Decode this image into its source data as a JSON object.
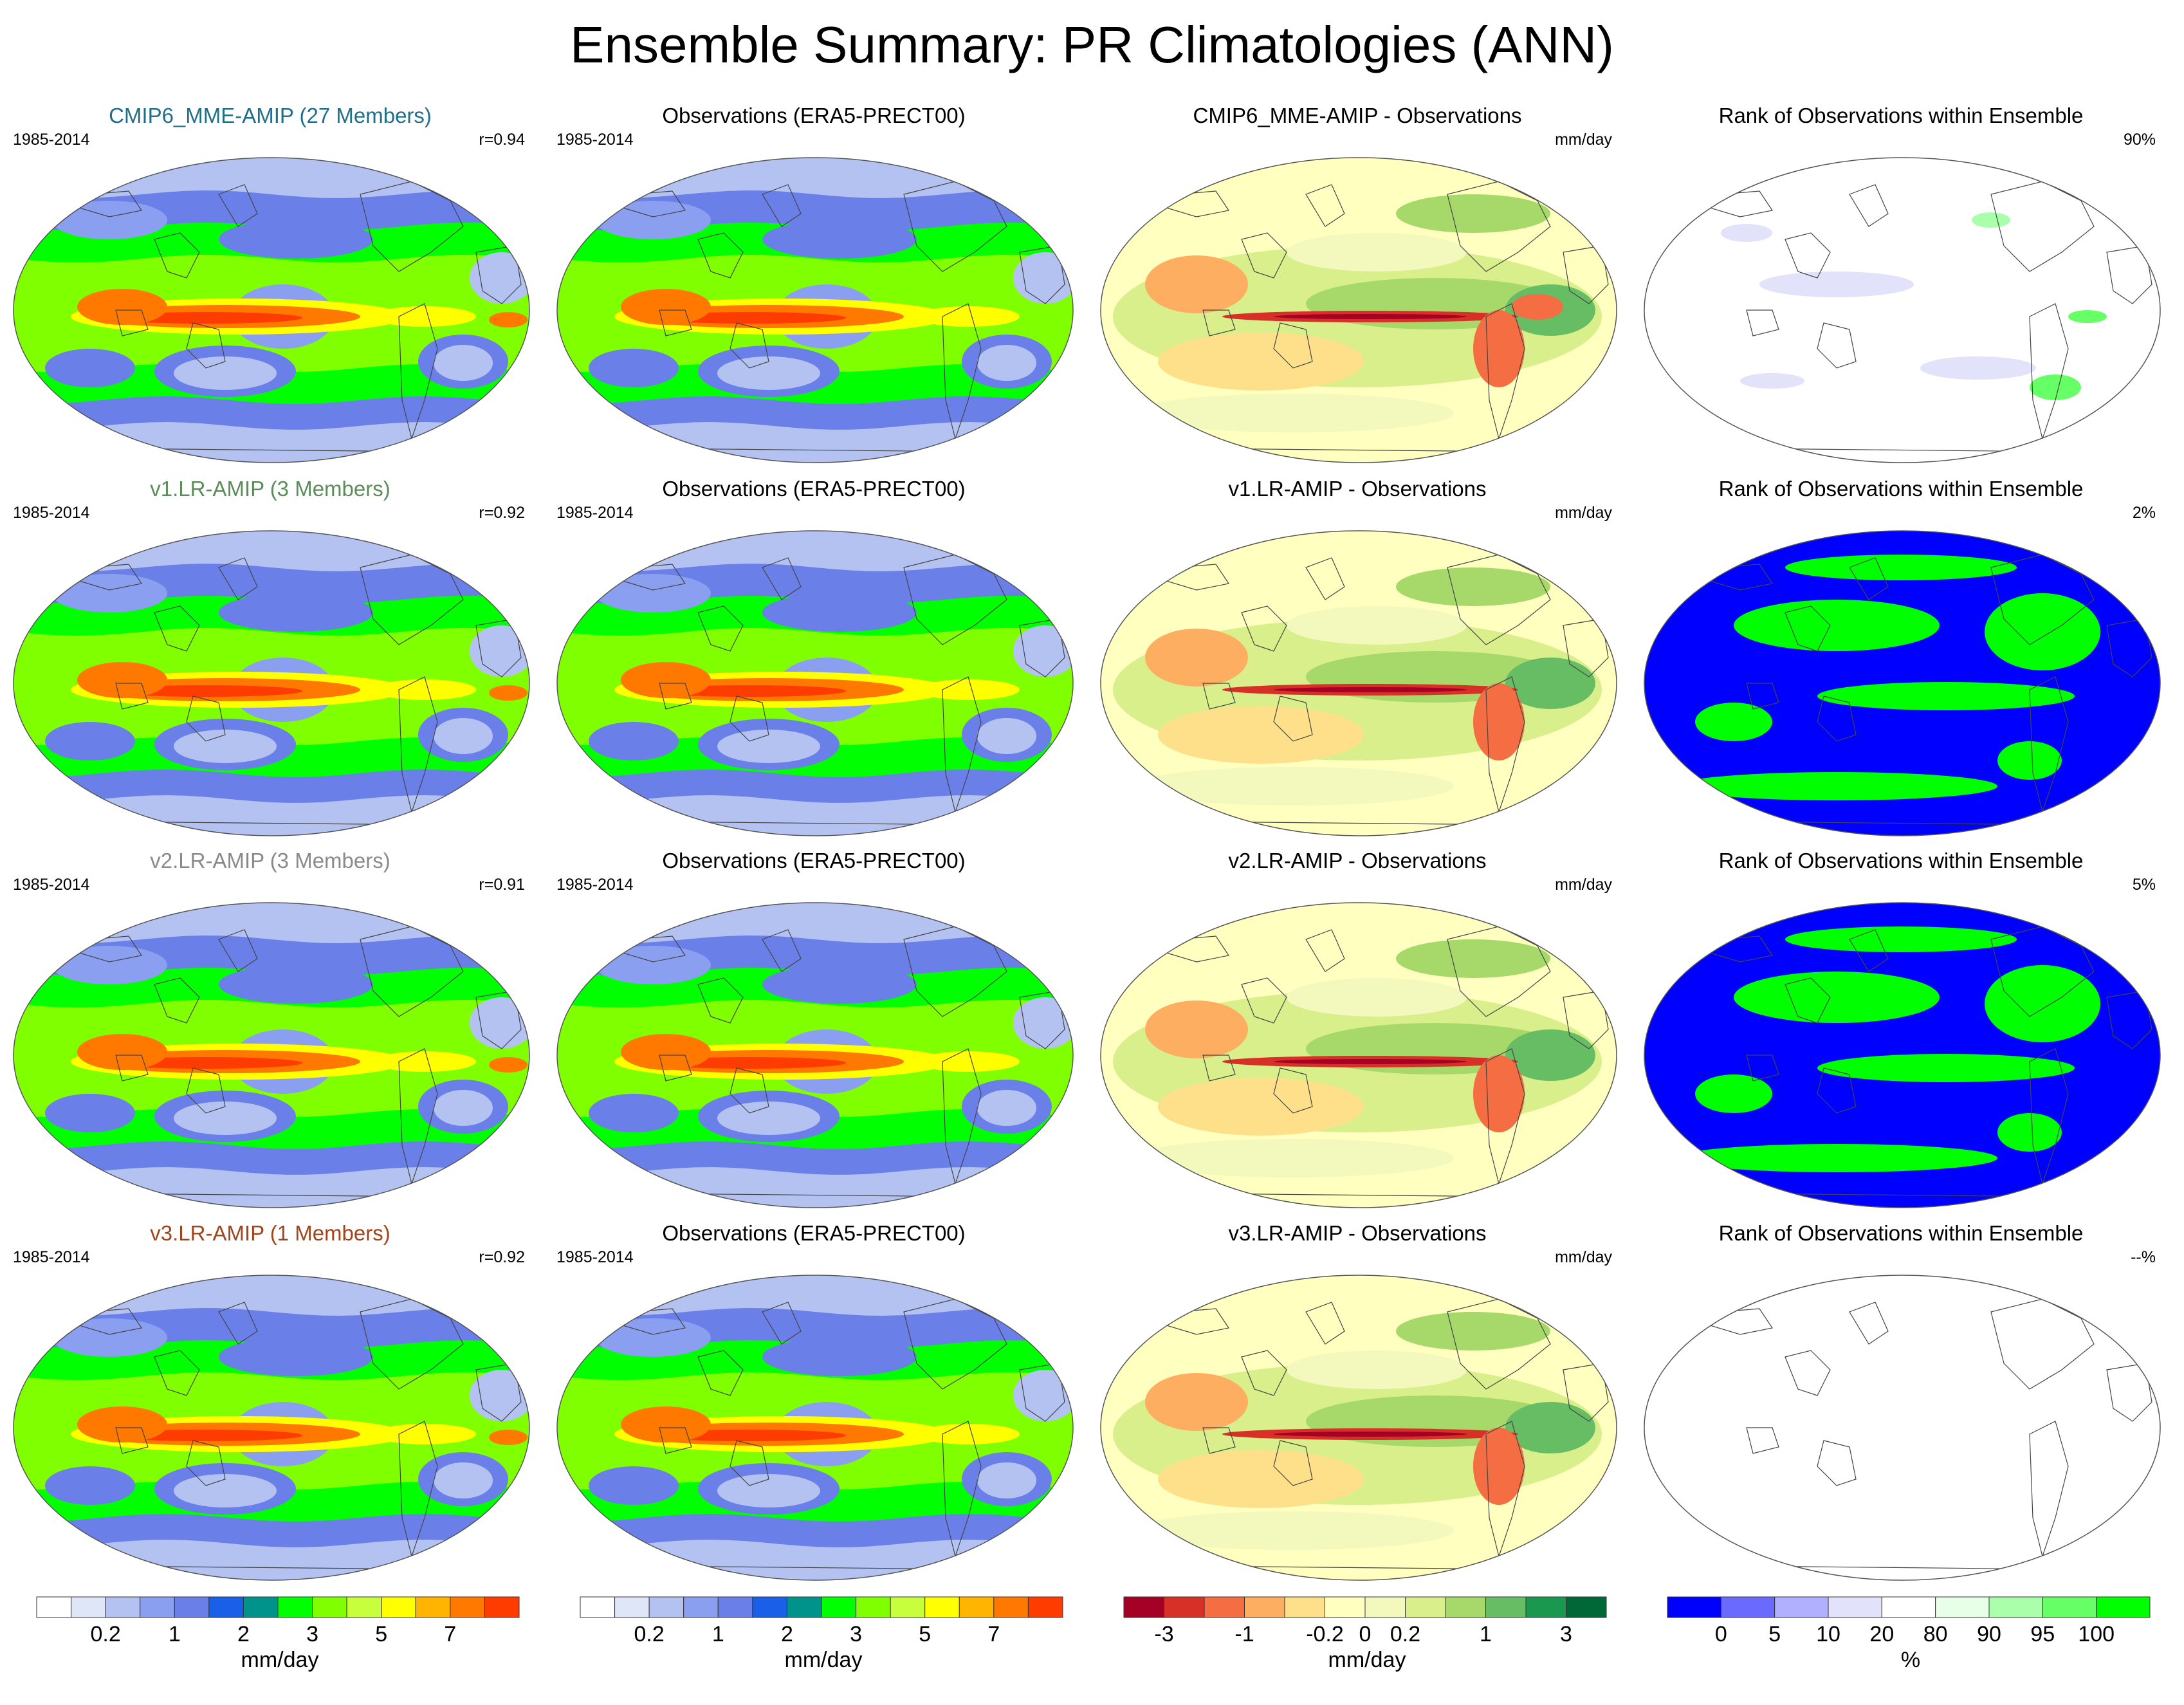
{
  "figure_title": "Ensemble Summary: PR Climatologies (ANN)",
  "colors": {
    "title_row1": "#1f6f8b",
    "title_row2": "#5b8c5a",
    "title_row3": "#8a8a8a",
    "title_row4": "#a0451c"
  },
  "rows": [
    {
      "model": {
        "title": "CMIP6_MME-AMIP (27 Members)",
        "period": "1985-2014",
        "corr": "r=0.94"
      },
      "obs": {
        "title": "Observations (ERA5-PRECT00)",
        "period": "1985-2014"
      },
      "diff": {
        "title": "CMIP6_MME-AMIP - Observations",
        "units": "mm/day"
      },
      "rank": {
        "title": "Rank of Observations within Ensemble",
        "pct": "90%",
        "pattern": "mostly-white"
      }
    },
    {
      "model": {
        "title": "v1.LR-AMIP (3 Members)",
        "period": "1985-2014",
        "corr": "r=0.92"
      },
      "obs": {
        "title": "Observations (ERA5-PRECT00)",
        "period": "1985-2014"
      },
      "diff": {
        "title": "v1.LR-AMIP - Observations",
        "units": "mm/day"
      },
      "rank": {
        "title": "Rank of Observations within Ensemble",
        "pct": "2%",
        "pattern": "blue-green"
      }
    },
    {
      "model": {
        "title": "v2.LR-AMIP (3 Members)",
        "period": "1985-2014",
        "corr": "r=0.91"
      },
      "obs": {
        "title": "Observations (ERA5-PRECT00)",
        "period": "1985-2014"
      },
      "diff": {
        "title": "v2.LR-AMIP - Observations",
        "units": "mm/day"
      },
      "rank": {
        "title": "Rank of Observations within Ensemble",
        "pct": "5%",
        "pattern": "blue-green"
      }
    },
    {
      "model": {
        "title": "v3.LR-AMIP (1 Members)",
        "period": "1985-2014",
        "corr": "r=0.92"
      },
      "obs": {
        "title": "Observations (ERA5-PRECT00)",
        "period": "1985-2014"
      },
      "diff": {
        "title": "v3.LR-AMIP - Observations",
        "units": "mm/day"
      },
      "rank": {
        "title": "Rank of Observations within Ensemble",
        "pct": "--%",
        "pattern": "empty"
      }
    }
  ],
  "colorbars": [
    {
      "units": "mm/day",
      "colors": [
        "#ffffff",
        "#dfe6f8",
        "#b3c2f0",
        "#8b9ff0",
        "#6a7fe8",
        "#1a5fe8",
        "#00938c",
        "#00ff00",
        "#80ff00",
        "#c8ff3c",
        "#ffff00",
        "#ffb400",
        "#ff7800",
        "#ff3c00"
      ],
      "tick_labels": [
        "0.2",
        "1",
        "2",
        "3",
        "5",
        "7"
      ],
      "tick_positions": [
        2,
        4,
        6,
        8,
        10,
        12
      ]
    },
    {
      "units": "mm/day",
      "colors": [
        "#ffffff",
        "#dfe6f8",
        "#b3c2f0",
        "#8b9ff0",
        "#6a7fe8",
        "#1a5fe8",
        "#00938c",
        "#00ff00",
        "#80ff00",
        "#c8ff3c",
        "#ffff00",
        "#ffb400",
        "#ff7800",
        "#ff3c00"
      ],
      "tick_labels": [
        "0.2",
        "1",
        "2",
        "3",
        "5",
        "7"
      ],
      "tick_positions": [
        2,
        4,
        6,
        8,
        10,
        12
      ]
    },
    {
      "units": "mm/day",
      "colors": [
        "#a50026",
        "#d73027",
        "#f46d43",
        "#fdae61",
        "#fee08b",
        "#ffffbf",
        "#f3f8bc",
        "#d9ef8b",
        "#a6d96a",
        "#66bd63",
        "#1a9850",
        "#006837"
      ],
      "tick_labels": [
        "-3",
        "-1",
        "-0.2",
        "0",
        "0.2",
        "1",
        "3"
      ],
      "tick_positions": [
        1,
        3,
        5,
        6,
        7,
        9,
        11
      ]
    },
    {
      "units": "%",
      "colors": [
        "#0000ff",
        "#6a6aff",
        "#b0b0ff",
        "#e2e2fa",
        "#ffffff",
        "#e6ffe6",
        "#aaffaa",
        "#66ff66",
        "#00ff00"
      ],
      "tick_labels": [
        "0",
        "5",
        "10",
        "20",
        "80",
        "90",
        "95",
        "100"
      ],
      "tick_positions": [
        1,
        2,
        3,
        4,
        5,
        6,
        7,
        8
      ]
    }
  ]
}
